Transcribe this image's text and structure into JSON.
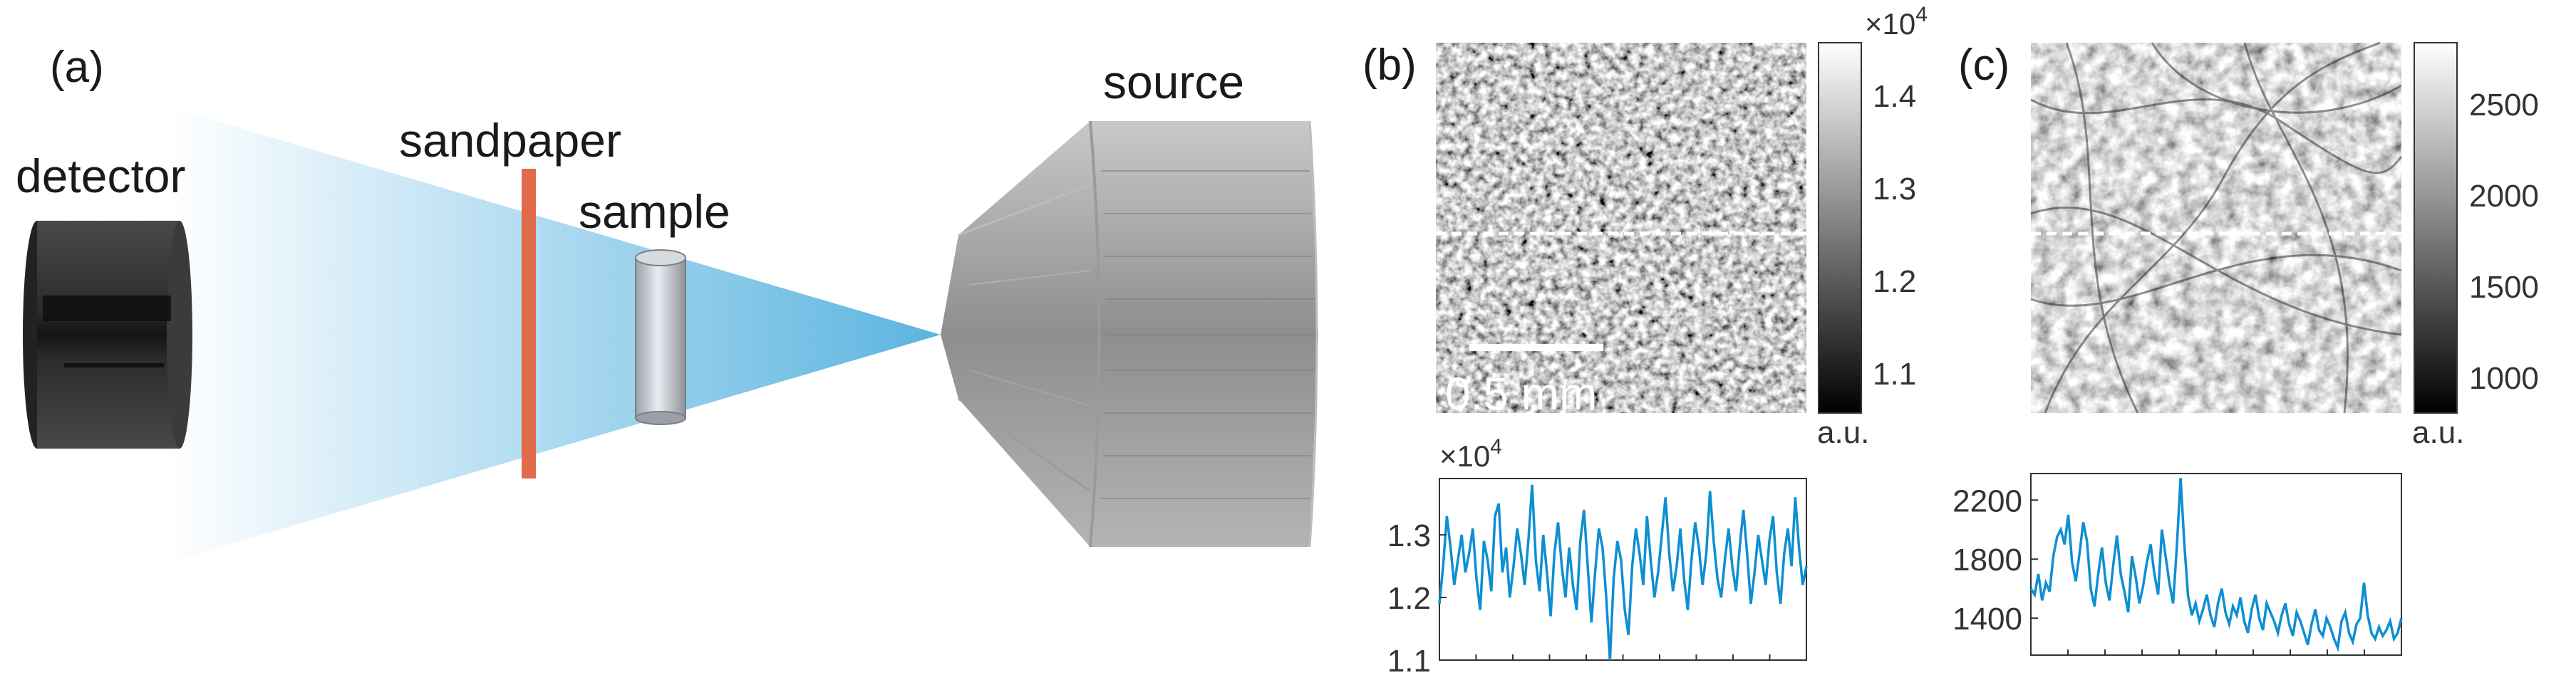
{
  "panel_a": {
    "label": "(a)",
    "detector_label": "detector",
    "sandpaper_label": "sandpaper",
    "sample_label": "sample",
    "source_label": "source",
    "colors": {
      "beam": "#5ab4e0",
      "sandpaper": "#e06a4a",
      "detector": "#3a3a3a",
      "source": "#a8a8a8"
    }
  },
  "panel_b": {
    "label": "(b)",
    "scalebar_label": "0.5 mm",
    "colorbar": {
      "multiplier": "×10",
      "exponent": "4",
      "ticks": [
        "1.4",
        "1.3",
        "1.2",
        "1.1"
      ],
      "unit": "a.u."
    },
    "profile_multiplier": "×10",
    "profile_exponent": "4"
  },
  "panel_c": {
    "label": "(c)",
    "colorbar": {
      "ticks": [
        "2500",
        "2000",
        "1500",
        "1000"
      ],
      "unit": "a.u."
    }
  },
  "chart_data": [
    {
      "type": "line",
      "panel": "(b)",
      "y_multiplier": "×10^4",
      "yticks": [
        "1.3",
        "1.2",
        "1.1"
      ],
      "ylim": [
        1.1,
        1.39
      ],
      "color": "#0d8fd1",
      "values": [
        1.19,
        1.25,
        1.33,
        1.28,
        1.22,
        1.26,
        1.3,
        1.24,
        1.27,
        1.31,
        1.23,
        1.18,
        1.29,
        1.26,
        1.21,
        1.33,
        1.35,
        1.24,
        1.28,
        1.2,
        1.25,
        1.31,
        1.27,
        1.22,
        1.29,
        1.38,
        1.26,
        1.21,
        1.3,
        1.24,
        1.17,
        1.27,
        1.32,
        1.25,
        1.2,
        1.28,
        1.22,
        1.18,
        1.29,
        1.34,
        1.25,
        1.16,
        1.24,
        1.31,
        1.28,
        1.2,
        1.1,
        1.23,
        1.29,
        1.26,
        1.18,
        1.14,
        1.25,
        1.31,
        1.27,
        1.22,
        1.33,
        1.26,
        1.2,
        1.24,
        1.3,
        1.36,
        1.27,
        1.21,
        1.25,
        1.31,
        1.23,
        1.18,
        1.26,
        1.32,
        1.28,
        1.22,
        1.27,
        1.37,
        1.29,
        1.23,
        1.2,
        1.26,
        1.31,
        1.25,
        1.21,
        1.28,
        1.34,
        1.27,
        1.19,
        1.24,
        1.3,
        1.26,
        1.22,
        1.29,
        1.33,
        1.24,
        1.19,
        1.27,
        1.31,
        1.25,
        1.36,
        1.28,
        1.22,
        1.25
      ]
    },
    {
      "type": "line",
      "panel": "(c)",
      "yticks": [
        "2200",
        "1800",
        "1400"
      ],
      "ylim": [
        1150,
        2380
      ],
      "color": "#0d8fd1",
      "values": [
        1600,
        1560,
        1700,
        1520,
        1640,
        1580,
        1820,
        1950,
        2000,
        1900,
        2100,
        1780,
        1650,
        1840,
        2050,
        1920,
        1600,
        1480,
        1700,
        1880,
        1640,
        1520,
        1760,
        1960,
        1700,
        1580,
        1440,
        1820,
        1680,
        1500,
        1620,
        1780,
        1900,
        1700,
        1560,
        2000,
        1820,
        1640,
        1500,
        1880,
        2350,
        1900,
        1550,
        1420,
        1500,
        1380,
        1460,
        1560,
        1420,
        1340,
        1500,
        1600,
        1440,
        1360,
        1480,
        1420,
        1540,
        1380,
        1300,
        1460,
        1560,
        1400,
        1320,
        1500,
        1440,
        1380,
        1300,
        1420,
        1500,
        1360,
        1280,
        1440,
        1380,
        1300,
        1220,
        1360,
        1460,
        1320,
        1280,
        1400,
        1340,
        1260,
        1200,
        1380,
        1440,
        1300,
        1240,
        1360,
        1400,
        1640,
        1420,
        1300,
        1260,
        1340,
        1280,
        1320,
        1380,
        1260,
        1300,
        1400
      ]
    }
  ]
}
